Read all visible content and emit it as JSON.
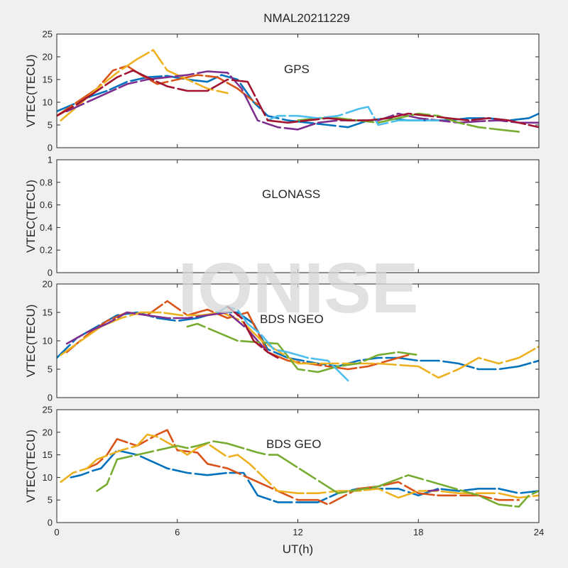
{
  "figure_title": "NMAL20211229",
  "watermark": "IONISE",
  "colors": {
    "figure_bg": "#f0f0f0",
    "axes_bg": "#ffffff",
    "axes_edge": "#262626",
    "watermark": "#d8d8d8",
    "series_palette": [
      "#0072bd",
      "#d95319",
      "#edb120",
      "#7e2f8e",
      "#77ac30",
      "#4dbeee",
      "#a2142f"
    ]
  },
  "chart_data": [
    {
      "type": "line",
      "panel_label": "GPS",
      "ylabel": "VTEC(TECU)",
      "xlabel": "",
      "xlim": [
        0,
        24
      ],
      "ylim": [
        0,
        25
      ],
      "xticks": [
        "0",
        "6",
        "12",
        "18",
        "24"
      ],
      "show_xtick_labels": false,
      "yticks": [
        0,
        5,
        10,
        15,
        20,
        25
      ],
      "grid": false,
      "series": [
        {
          "color": "#0072bd",
          "x": [
            0,
            0.8,
            1.5,
            2.5,
            3.5,
            4.5,
            5.5,
            6.5,
            7.5,
            8.2,
            9.0,
            9.8,
            10.5,
            11.5,
            12.5,
            13.5,
            14.5,
            15.5,
            16.5,
            17.5,
            18.5,
            19.5,
            20.5,
            21.5,
            22.5,
            23.5,
            24
          ],
          "y": [
            8,
            9.5,
            11,
            12.5,
            14.5,
            15.5,
            15.8,
            15,
            14.5,
            16,
            15,
            10,
            7,
            6,
            5.5,
            5,
            4.5,
            6,
            6.5,
            6,
            6,
            6,
            6.5,
            6.5,
            6,
            6.5,
            7.5
          ]
        },
        {
          "color": "#d95319",
          "x": [
            0,
            1,
            2,
            2.8,
            3.5,
            4.2,
            5,
            6,
            7,
            8,
            9,
            10
          ],
          "y": [
            7,
            10,
            13,
            17,
            18,
            16,
            14,
            15,
            16,
            15.5,
            13,
            9.5
          ]
        },
        {
          "color": "#edb120",
          "x": [
            0.2,
            1,
            2,
            3,
            4,
            4.8,
            5.5,
            6.5,
            7.5,
            8.5
          ],
          "y": [
            6,
            9,
            13,
            16.5,
            19.5,
            21.5,
            17,
            15,
            13,
            12
          ]
        },
        {
          "color": "#7e2f8e",
          "x": [
            0.5,
            1.5,
            2.5,
            3.5,
            4.5,
            5.5,
            6.5,
            7.5,
            8.5,
            9.2,
            10,
            11,
            12,
            13,
            14,
            15,
            16,
            17,
            18,
            19,
            20,
            21,
            22,
            23,
            24
          ],
          "y": [
            8,
            10,
            12,
            14,
            15,
            15.5,
            16,
            16.8,
            16.5,
            13,
            6,
            4.5,
            4,
            5.5,
            6,
            6,
            6,
            7.5,
            6.5,
            6,
            5.5,
            5.8,
            6,
            5.5,
            5.5
          ]
        },
        {
          "color": "#77ac30",
          "x": [
            12,
            13,
            14,
            15,
            16,
            17,
            18,
            19,
            20,
            21,
            22,
            23
          ],
          "y": [
            6,
            6.5,
            6.5,
            6,
            5.5,
            6.5,
            7.5,
            7,
            5.5,
            4.5,
            4,
            3.5
          ]
        },
        {
          "color": "#4dbeee",
          "x": [
            10.5,
            11,
            12,
            13,
            14,
            15,
            15.5,
            16,
            17,
            18,
            19
          ],
          "y": [
            6,
            7,
            7,
            6.5,
            7,
            8.5,
            9,
            5,
            6,
            6,
            6
          ]
        },
        {
          "color": "#a2142f",
          "x": [
            0,
            1,
            2,
            3,
            3.8,
            4.5,
            5.5,
            6.5,
            7.5,
            8.5,
            9.5,
            10.5,
            11.5,
            12.5,
            13.5,
            14.5,
            15.5,
            16.5,
            17.5,
            18.5,
            19.5,
            20.5,
            21.5,
            22.5,
            23.5,
            24
          ],
          "y": [
            7,
            9.5,
            12.5,
            15.5,
            17,
            15.5,
            13.5,
            12.5,
            12.5,
            15,
            14.5,
            6,
            5.5,
            6,
            6.5,
            6,
            6,
            6.5,
            7.5,
            7,
            6.5,
            6,
            6.5,
            6,
            5,
            4.5
          ]
        }
      ]
    },
    {
      "type": "line",
      "panel_label": "GLONASS",
      "ylabel": "VTEC(TECU)",
      "xlabel": "",
      "xlim": [
        0,
        24
      ],
      "ylim": [
        0,
        1
      ],
      "xticks": [
        "0",
        "6",
        "12",
        "18",
        "24"
      ],
      "show_xtick_labels": false,
      "yticks": [
        0,
        0.2,
        0.4,
        0.6,
        0.8,
        1
      ],
      "grid": false,
      "series": []
    },
    {
      "type": "line",
      "panel_label": "BDS NGEO",
      "ylabel": "VTEC(TECU)",
      "xlabel": "",
      "xlim": [
        0,
        24
      ],
      "ylim": [
        0,
        20
      ],
      "xticks": [
        "0",
        "6",
        "12",
        "18",
        "24"
      ],
      "show_xtick_labels": false,
      "yticks": [
        0,
        5,
        10,
        15,
        20
      ],
      "grid": false,
      "series": [
        {
          "color": "#0072bd",
          "x": [
            0,
            1,
            2,
            3,
            4,
            5,
            6,
            7,
            8,
            9,
            9.8,
            10.5,
            11.5,
            13,
            14,
            15,
            16,
            17,
            18,
            19,
            20,
            21,
            22,
            23,
            24
          ],
          "y": [
            7,
            10.5,
            12.5,
            14.5,
            15,
            14,
            13.5,
            14,
            15,
            15,
            13,
            8.5,
            7,
            6,
            5.5,
            6.5,
            7,
            7,
            6.5,
            6.5,
            6,
            5,
            5,
            5.5,
            6.5
          ]
        },
        {
          "color": "#d95319",
          "x": [
            0.5,
            1.5,
            2.5,
            3.5,
            4.5,
            5.5,
            6.5,
            7.5,
            8.5,
            9.5,
            10.5,
            11.5,
            12.5,
            13.5,
            14.5,
            15.5,
            16.5,
            17.5
          ],
          "y": [
            8,
            11,
            13.5,
            15,
            14.5,
            17,
            14.5,
            15.5,
            14,
            15,
            8,
            6.5,
            6,
            5.5,
            5,
            5.5,
            6.5,
            7.5
          ]
        },
        {
          "color": "#edb120",
          "x": [
            0.2,
            1.2,
            2.2,
            3.2,
            4.2,
            5.2,
            6.2,
            7.2,
            8.2,
            9.2,
            10.2,
            12,
            14,
            16,
            18,
            19,
            20,
            21,
            22,
            23,
            24
          ],
          "y": [
            7.5,
            10,
            12.5,
            14,
            15,
            15,
            14.5,
            14.5,
            15,
            13.5,
            10,
            6,
            6,
            6,
            5.5,
            3.5,
            5,
            7,
            6,
            7,
            9
          ]
        },
        {
          "color": "#7e2f8e",
          "x": [
            0.5,
            1.5,
            2.5,
            3.5,
            4.5,
            5.5,
            6.5,
            7.5,
            8.5,
            9.5,
            10.5
          ],
          "y": [
            9.5,
            11.5,
            13,
            15,
            14.5,
            14,
            14,
            14.5,
            15,
            12,
            8
          ]
        },
        {
          "color": "#77ac30",
          "x": [
            6.5,
            7,
            9,
            11,
            12,
            13,
            14,
            15,
            16,
            17,
            18
          ],
          "y": [
            12.5,
            13,
            10,
            9.5,
            5,
            4.5,
            5.5,
            6,
            7.5,
            8,
            7.5
          ]
        },
        {
          "color": "#4dbeee",
          "x": [
            8,
            8.5,
            9,
            9.5,
            10.2,
            10.8,
            11.5,
            12.5,
            13.5,
            14.5
          ],
          "y": [
            15,
            16,
            15.5,
            13,
            11,
            8.5,
            8,
            7,
            6.5,
            3
          ]
        },
        {
          "color": "#a2142f",
          "x": [
            8.5,
            9.2,
            9.8,
            10.5,
            11
          ],
          "y": [
            16,
            14,
            10,
            8,
            7
          ]
        }
      ]
    },
    {
      "type": "line",
      "panel_label": "BDS GEO",
      "ylabel": "VTEC(TECU)",
      "xlabel": "UT(h)",
      "xlim": [
        0,
        24
      ],
      "ylim": [
        0,
        25
      ],
      "xticks": [
        "0",
        "6",
        "12",
        "18",
        "24"
      ],
      "show_xtick_labels": true,
      "yticks": [
        0,
        5,
        10,
        15,
        20,
        25
      ],
      "grid": false,
      "series": [
        {
          "color": "#0072bd",
          "x": [
            0.7,
            1.2,
            1.8,
            2.2,
            3,
            4,
            5,
            5.5,
            6.5,
            7.5,
            8.5,
            9.3,
            10,
            11,
            12,
            13,
            14,
            15,
            16,
            17,
            18,
            19,
            20,
            21,
            22,
            23,
            24
          ],
          "y": [
            10,
            10.5,
            11.5,
            12,
            16,
            15,
            13,
            12,
            11,
            10.5,
            11,
            11,
            6,
            4.5,
            4.5,
            4.5,
            6.5,
            7.5,
            7.5,
            7.5,
            6,
            7.5,
            7,
            7.5,
            7.5,
            6.5,
            7
          ]
        },
        {
          "color": "#d95319",
          "x": [
            1.5,
            2,
            2.5,
            3,
            4,
            5,
            5.5,
            6,
            7,
            7.5,
            8,
            8.5,
            12,
            13,
            13.5,
            15,
            16,
            17,
            18,
            19,
            20,
            21,
            22,
            23
          ],
          "y": [
            12,
            13,
            15,
            18.5,
            17,
            19.5,
            20.5,
            16,
            15.5,
            13,
            12.5,
            12,
            5,
            5,
            4,
            7.5,
            8,
            9,
            6.5,
            6,
            6,
            6,
            5,
            5
          ]
        },
        {
          "color": "#edb120",
          "x": [
            0.2,
            0.8,
            1.5,
            2,
            2.6,
            3.2,
            4,
            4.5,
            5,
            5.8,
            6.5,
            7,
            7.5,
            8,
            8.5,
            9,
            9.6,
            11,
            12,
            13,
            14,
            15,
            16,
            17,
            18,
            19,
            20,
            21,
            22,
            23,
            24
          ],
          "y": [
            9,
            11,
            12,
            14,
            15,
            16,
            17,
            19.5,
            19,
            17,
            15,
            16.5,
            17.5,
            16,
            14.5,
            15,
            13,
            7,
            6.5,
            6.5,
            7,
            7,
            7.5,
            5.5,
            7,
            7,
            6.5,
            6.5,
            6.5,
            5.5,
            6
          ]
        },
        {
          "color": "#7e2f8e",
          "x": [
            18.5,
            19
          ],
          "y": [
            7,
            7.2
          ]
        },
        {
          "color": "#77ac30",
          "x": [
            2,
            2.5,
            3,
            3.5,
            6,
            6.5,
            7,
            7.8,
            8.5,
            10,
            10.5,
            11,
            14,
            16,
            17.5,
            21,
            22,
            23,
            23.5,
            24
          ],
          "y": [
            7,
            8.5,
            14,
            14.5,
            17,
            16.5,
            17,
            18,
            17.5,
            15.5,
            15,
            15,
            6.5,
            8,
            10.5,
            6,
            4,
            3.5,
            6,
            7
          ]
        }
      ]
    }
  ]
}
